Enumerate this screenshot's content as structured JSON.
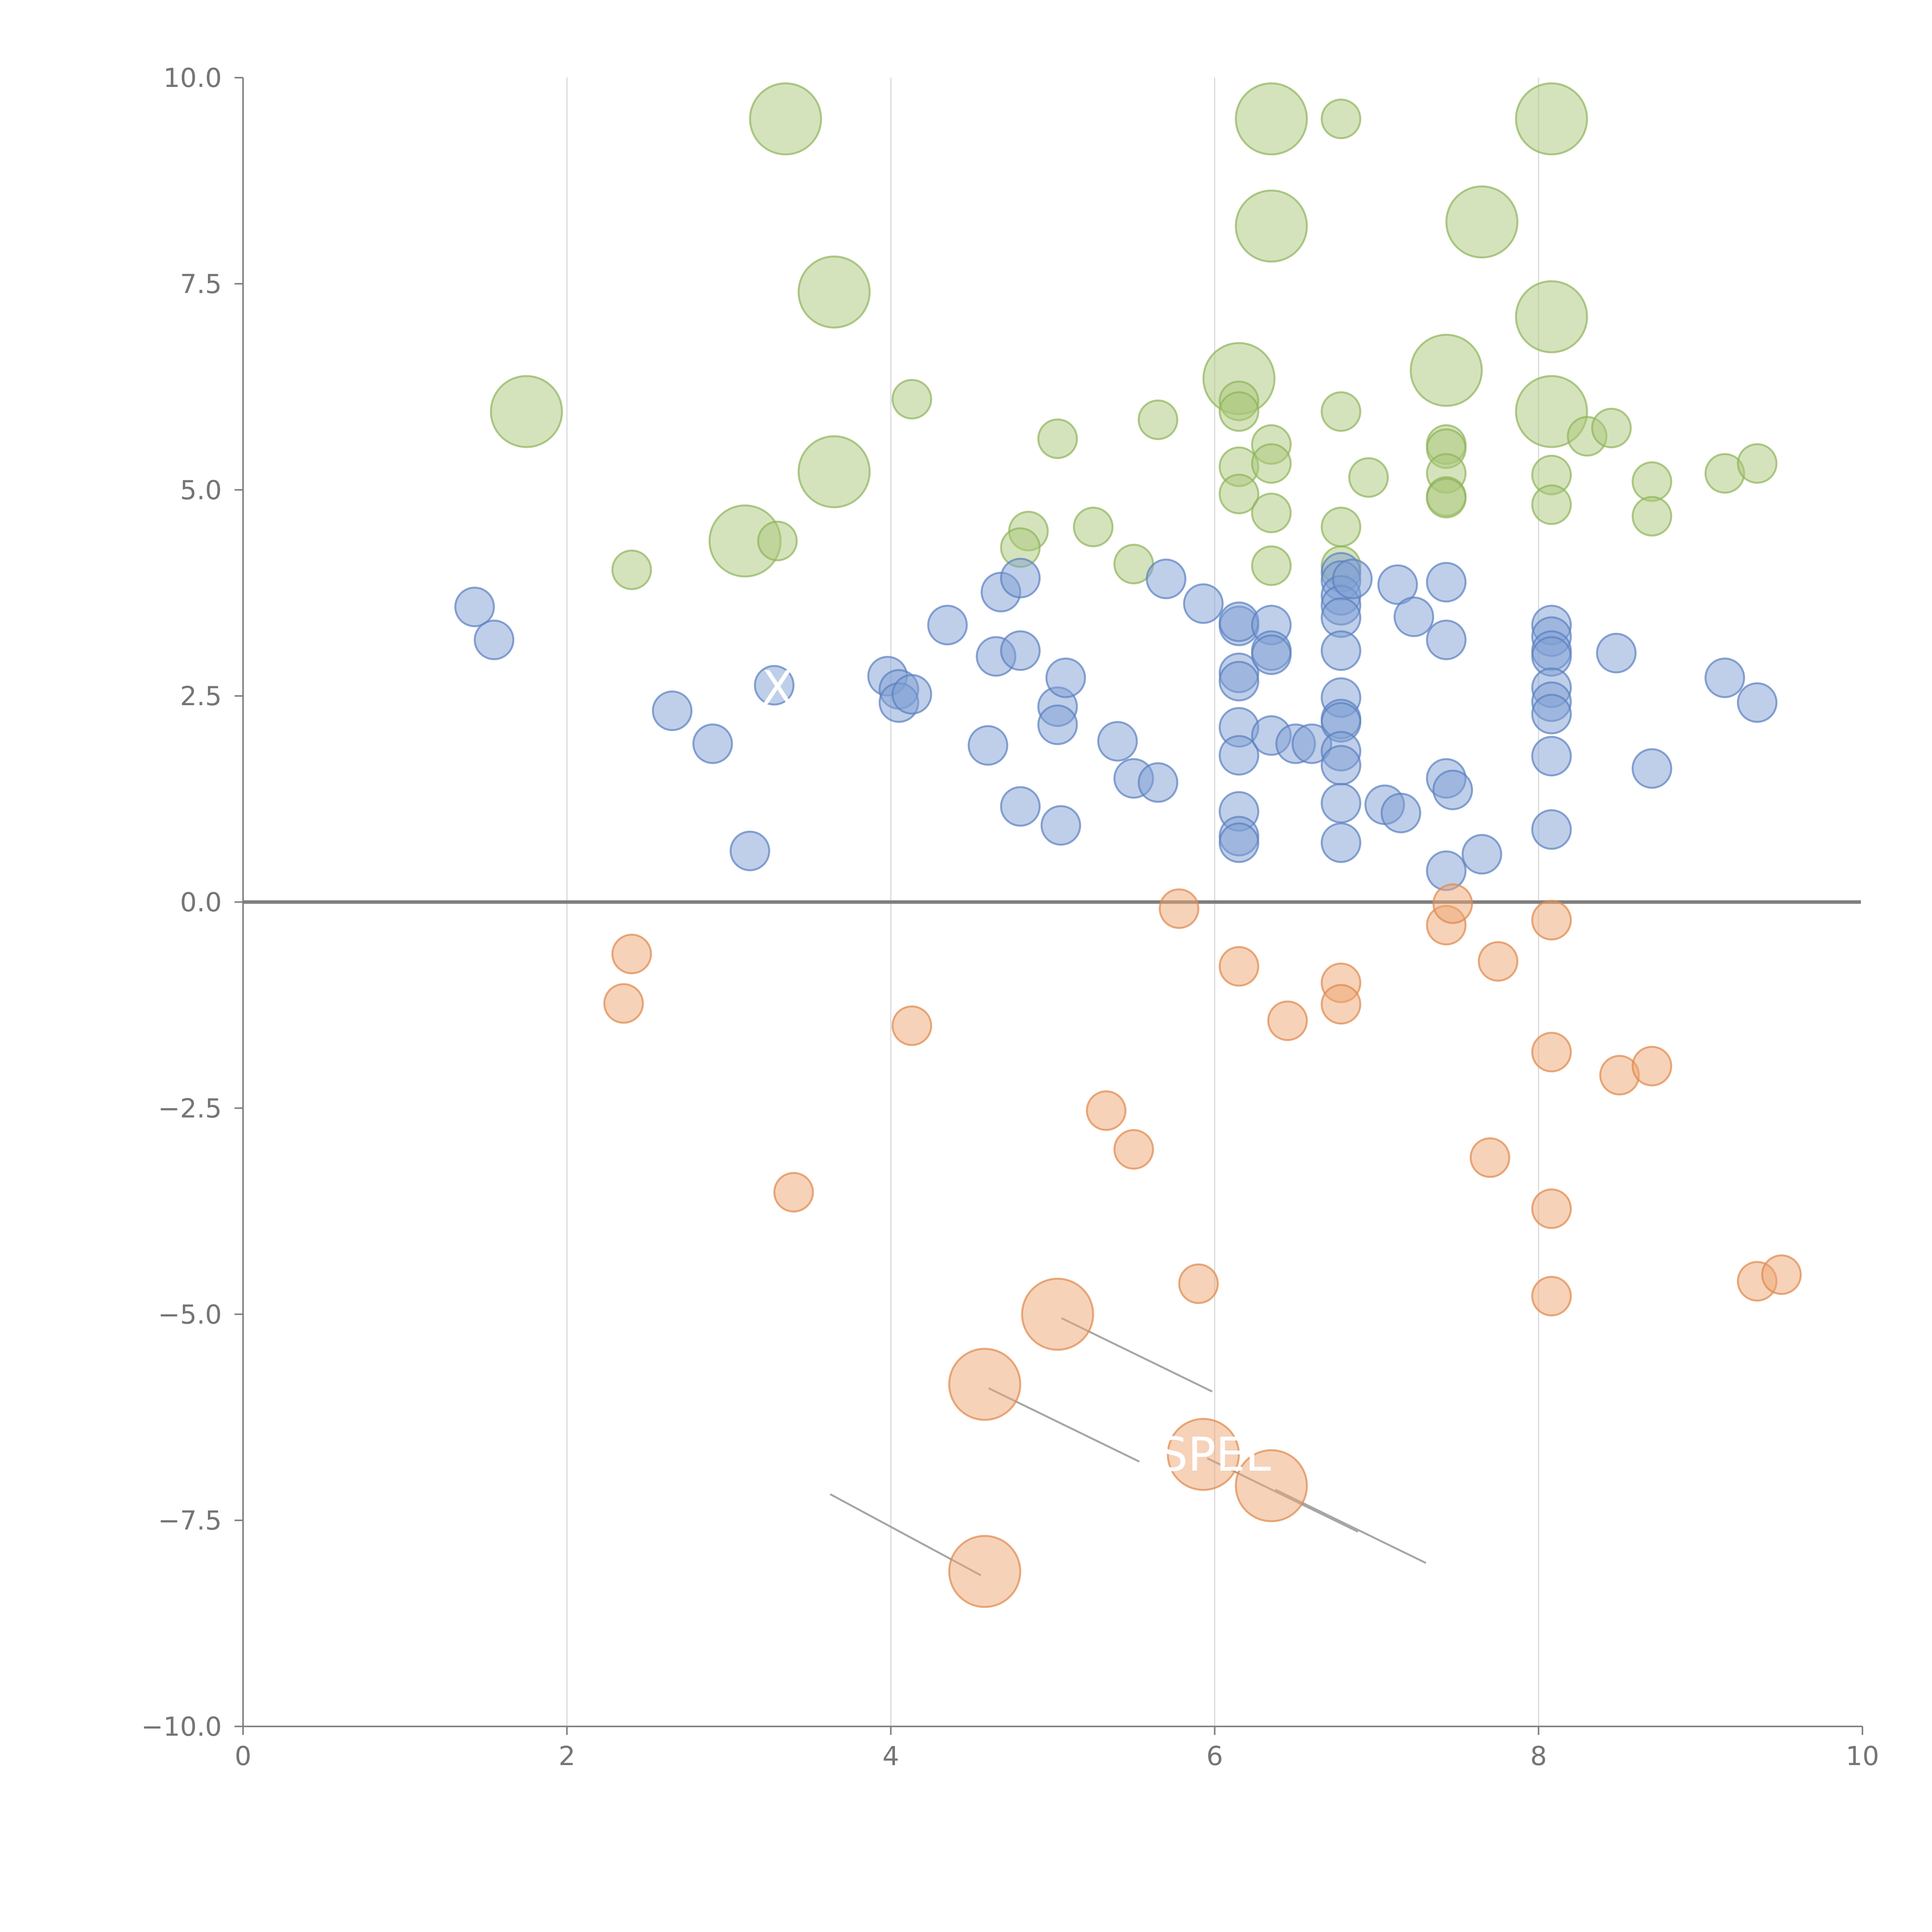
{
  "chart_data": {
    "type": "scatter",
    "title": "",
    "xlabel": "",
    "ylabel": "",
    "xlim": [
      0,
      10
    ],
    "ylim": [
      -10,
      10
    ],
    "x_ticks": [
      "0",
      "2",
      "4",
      "6",
      "8",
      "10"
    ],
    "y_ticks": [
      "10.0",
      "7.5",
      "5.0",
      "2.5",
      "0.0",
      "−2.5",
      "−5.0",
      "−7.5",
      "−10.0"
    ],
    "grid": "vertical lines at x = 2, 4, 6, 8",
    "zero_line": true,
    "colors": {
      "green": "#a9c77a",
      "blue": "#7f9fd3",
      "orange": "#eea673"
    },
    "bubble_labels": [
      {
        "text": "X",
        "x": 3.3,
        "y": 2.6
      },
      {
        "text": "SPEL",
        "x": 6.0,
        "y": -6.7
      }
    ],
    "series": [
      {
        "color_key": "green",
        "points": [
          [
            3.35,
            9.5,
            2
          ],
          [
            6.35,
            9.5,
            2
          ],
          [
            6.78,
            9.5,
            1
          ],
          [
            8.08,
            9.5,
            2
          ],
          [
            6.35,
            8.2,
            2
          ],
          [
            7.65,
            8.25,
            2
          ],
          [
            3.65,
            7.4,
            2
          ],
          [
            8.08,
            7.1,
            2
          ],
          [
            6.15,
            6.35,
            2
          ],
          [
            7.43,
            6.45,
            2
          ],
          [
            1.75,
            5.95,
            2
          ],
          [
            8.08,
            5.95,
            2
          ],
          [
            3.65,
            5.22,
            2
          ],
          [
            3.1,
            4.38,
            2
          ],
          [
            4.13,
            6.1,
            1
          ],
          [
            5.65,
            5.85,
            1
          ],
          [
            6.15,
            6.08,
            1
          ],
          [
            6.15,
            5.95,
            1
          ],
          [
            6.78,
            5.95,
            1
          ],
          [
            5.03,
            5.62,
            1
          ],
          [
            6.35,
            5.55,
            1
          ],
          [
            7.43,
            5.55,
            1
          ],
          [
            7.43,
            5.5,
            1
          ],
          [
            8.3,
            5.65,
            1
          ],
          [
            8.45,
            5.75,
            1
          ],
          [
            6.15,
            5.28,
            1
          ],
          [
            6.35,
            5.32,
            1
          ],
          [
            6.95,
            5.15,
            1
          ],
          [
            7.43,
            5.2,
            1
          ],
          [
            8.08,
            5.18,
            1
          ],
          [
            8.7,
            5.1,
            1
          ],
          [
            9.15,
            5.2,
            1
          ],
          [
            9.35,
            5.32,
            1
          ],
          [
            6.15,
            4.95,
            1
          ],
          [
            7.43,
            4.92,
            1
          ],
          [
            7.43,
            4.9,
            1
          ],
          [
            8.08,
            4.82,
            1
          ],
          [
            8.7,
            4.68,
            1
          ],
          [
            6.35,
            4.72,
            1
          ],
          [
            4.85,
            4.5,
            1
          ],
          [
            5.25,
            4.55,
            1
          ],
          [
            6.78,
            4.55,
            1
          ],
          [
            4.8,
            4.3,
            1
          ],
          [
            3.3,
            4.38,
            1
          ],
          [
            2.4,
            4.03,
            1
          ],
          [
            5.5,
            4.1,
            1
          ],
          [
            6.35,
            4.08,
            1
          ],
          [
            6.78,
            4.08,
            1
          ]
        ]
      },
      {
        "color_key": "blue",
        "points": [
          [
            1.43,
            3.58,
            1
          ],
          [
            1.55,
            3.18,
            1
          ],
          [
            2.65,
            2.32,
            1
          ],
          [
            2.9,
            1.92,
            1
          ],
          [
            3.13,
            0.62,
            1
          ],
          [
            3.28,
            2.63,
            1
          ],
          [
            3.98,
            2.74,
            1
          ],
          [
            4.05,
            2.58,
            1
          ],
          [
            4.05,
            2.42,
            1
          ],
          [
            4.13,
            2.52,
            1
          ],
          [
            4.35,
            3.36,
            1
          ],
          [
            4.6,
            1.9,
            1
          ],
          [
            4.65,
            2.98,
            1
          ],
          [
            4.68,
            3.76,
            1
          ],
          [
            4.8,
            3.93,
            1
          ],
          [
            4.8,
            3.05,
            1
          ],
          [
            4.8,
            1.16,
            1
          ],
          [
            5.03,
            2.37,
            1
          ],
          [
            5.03,
            2.15,
            1
          ],
          [
            5.08,
            2.72,
            1
          ],
          [
            5.05,
            0.93,
            1
          ],
          [
            5.4,
            1.95,
            1
          ],
          [
            5.5,
            1.5,
            1
          ],
          [
            5.65,
            1.45,
            1
          ],
          [
            5.7,
            3.92,
            1
          ],
          [
            5.93,
            3.62,
            1
          ],
          [
            6.15,
            3.35,
            1
          ],
          [
            6.15,
            3.4,
            1
          ],
          [
            6.15,
            2.78,
            1
          ],
          [
            6.15,
            2.68,
            1
          ],
          [
            6.15,
            2.12,
            1
          ],
          [
            6.15,
            1.78,
            1
          ],
          [
            6.15,
            1.1,
            1
          ],
          [
            6.15,
            0.8,
            1
          ],
          [
            6.15,
            0.72,
            1
          ],
          [
            6.35,
            3.36,
            1
          ],
          [
            6.35,
            3.05,
            1
          ],
          [
            6.35,
            3.0,
            1
          ],
          [
            6.35,
            2.02,
            1
          ],
          [
            6.5,
            1.92,
            1
          ],
          [
            6.6,
            1.92,
            1
          ],
          [
            6.78,
            4.0,
            1
          ],
          [
            6.78,
            3.9,
            1
          ],
          [
            6.78,
            3.72,
            1
          ],
          [
            6.78,
            3.6,
            1
          ],
          [
            6.78,
            3.45,
            1
          ],
          [
            6.78,
            3.05,
            1
          ],
          [
            6.78,
            2.48,
            1
          ],
          [
            6.78,
            2.22,
            1
          ],
          [
            6.78,
            2.18,
            1
          ],
          [
            6.78,
            1.83,
            1
          ],
          [
            6.78,
            1.66,
            1
          ],
          [
            6.78,
            1.2,
            1
          ],
          [
            6.78,
            0.72,
            1
          ],
          [
            6.85,
            3.92,
            1
          ],
          [
            7.05,
            1.18,
            1
          ],
          [
            7.15,
            1.08,
            1
          ],
          [
            7.13,
            3.85,
            1
          ],
          [
            7.23,
            3.46,
            1
          ],
          [
            7.43,
            3.88,
            1
          ],
          [
            7.43,
            3.18,
            1
          ],
          [
            7.43,
            1.5,
            1
          ],
          [
            7.43,
            0.38,
            1
          ],
          [
            7.47,
            1.36,
            1
          ],
          [
            7.65,
            0.58,
            1
          ],
          [
            8.08,
            3.36,
            1
          ],
          [
            8.08,
            3.22,
            1
          ],
          [
            8.08,
            3.05,
            1
          ],
          [
            8.08,
            2.98,
            1
          ],
          [
            8.08,
            2.6,
            1
          ],
          [
            8.08,
            2.43,
            1
          ],
          [
            8.08,
            2.28,
            1
          ],
          [
            8.08,
            1.77,
            1
          ],
          [
            8.08,
            0.88,
            1
          ],
          [
            8.48,
            3.02,
            1
          ],
          [
            8.7,
            1.62,
            1
          ],
          [
            9.15,
            2.72,
            1
          ],
          [
            9.35,
            2.42,
            1
          ]
        ]
      },
      {
        "color_key": "orange",
        "points": [
          [
            5.78,
            -0.08,
            1
          ],
          [
            7.43,
            -0.28,
            1
          ],
          [
            7.47,
            -0.02,
            1
          ],
          [
            8.08,
            -0.22,
            1
          ],
          [
            2.4,
            -0.63,
            1
          ],
          [
            2.35,
            -1.23,
            1
          ],
          [
            6.15,
            -0.78,
            1
          ],
          [
            6.78,
            -0.98,
            1
          ],
          [
            6.78,
            -1.24,
            1
          ],
          [
            7.75,
            -0.72,
            1
          ],
          [
            4.13,
            -1.5,
            1
          ],
          [
            6.45,
            -1.44,
            1
          ],
          [
            8.08,
            -1.82,
            1
          ],
          [
            8.5,
            -2.1,
            1
          ],
          [
            8.7,
            -1.99,
            1
          ],
          [
            5.33,
            -2.53,
            1
          ],
          [
            5.5,
            -3.0,
            1
          ],
          [
            7.7,
            -3.1,
            1
          ],
          [
            3.4,
            -3.52,
            1
          ],
          [
            8.08,
            -3.72,
            1
          ],
          [
            5.9,
            -4.63,
            1
          ],
          [
            8.08,
            -4.78,
            1
          ],
          [
            9.35,
            -4.6,
            1
          ],
          [
            9.5,
            -4.52,
            1
          ],
          [
            5.03,
            -5.0,
            2
          ],
          [
            4.58,
            -5.85,
            2
          ],
          [
            5.93,
            -6.7,
            2
          ],
          [
            6.35,
            -7.08,
            2
          ],
          [
            4.58,
            -8.12,
            2
          ]
        ]
      }
    ]
  }
}
